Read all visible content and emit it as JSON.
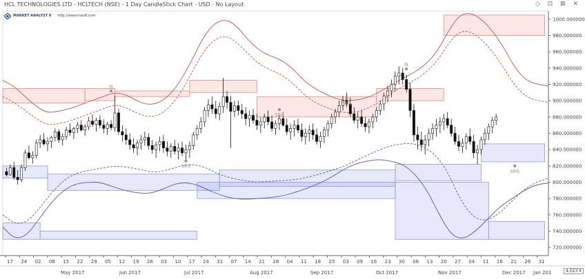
{
  "header": {
    "title": "HCL TECHNOLOGIES LTD - HCLTECH (NSE) - 1 Day CandleStick Chart - USD - No Layout",
    "window_icons": "◇ ⊡ ⊠ ✕"
  },
  "logo": {
    "brand": "MARKET ANALYST 8",
    "url": "http://www.mav8.com"
  },
  "chart_data": {
    "type": "candlestick",
    "y_axis": {
      "ylim": [
        710,
        1010
      ],
      "ticks": [
        720,
        740,
        760,
        780,
        800,
        820,
        840,
        860,
        880,
        900,
        920,
        940,
        960,
        980,
        1000
      ],
      "tick_format": "0.000000",
      "position": "right"
    },
    "x_axis": {
      "day_ticks": [
        "17",
        "24",
        "02",
        "08",
        "15",
        "22",
        "29",
        "05",
        "12",
        "19",
        "26",
        "03",
        "10",
        "17",
        "24",
        "31",
        "07",
        "14",
        "21",
        "28",
        "04",
        "11",
        "18",
        "25",
        "03",
        "09",
        "16",
        "23",
        "30",
        "06",
        "13",
        "20",
        "27",
        "04",
        "11",
        "16",
        "21",
        "26",
        "31"
      ],
      "month_labels": [
        "May 2017",
        "Jun 2017",
        "Jul 2017",
        "Aug 2017",
        "Sep 2017",
        "Oct 2017",
        "Nov 2017",
        "Dec 2017",
        "Jan 201"
      ]
    },
    "price_readout": "4.023 ¥",
    "markers": [
      {
        "label": "N",
        "x_index": 29,
        "y": 912
      },
      {
        "label": "SR5",
        "x_index": 49,
        "y": 826
      },
      {
        "label": "SR4",
        "x_index": 74,
        "y": 889
      },
      {
        "label": "SR3",
        "x_index": 92,
        "y": 903
      },
      {
        "label": "N",
        "x_index": 108,
        "y": 939
      },
      {
        "label": "SR6",
        "x_index": 137,
        "y": 820
      }
    ],
    "bands": [
      {
        "color": "red",
        "segments": [
          [
            0,
            22,
            897,
            915
          ],
          [
            22,
            30,
            900,
            915
          ],
          [
            30,
            50,
            905,
            912
          ],
          [
            50,
            68,
            910,
            925
          ],
          [
            68,
            100,
            880,
            905
          ],
          [
            100,
            118,
            900,
            915
          ],
          [
            118,
            145,
            980,
            1005
          ]
        ]
      },
      {
        "color": "blue",
        "segments": [
          [
            0,
            12,
            805,
            820
          ],
          [
            12,
            58,
            790,
            810
          ],
          [
            58,
            105,
            795,
            815
          ],
          [
            105,
            128,
            802,
            822
          ],
          [
            128,
            145,
            825,
            847
          ]
        ]
      },
      {
        "color": "blue",
        "segments": [
          [
            0,
            10,
            730,
            750
          ],
          [
            10,
            52,
            730,
            740
          ],
          [
            52,
            105,
            780,
            800
          ],
          [
            105,
            130,
            730,
            800
          ],
          [
            130,
            145,
            730,
            752
          ]
        ]
      }
    ],
    "series": [
      {
        "style": "solid-red",
        "values": [
          925,
          918,
          905,
          893,
          885,
          887,
          890,
          895,
          900,
          905,
          910,
          908,
          900,
          895,
          897,
          907,
          925,
          950,
          978,
          995,
          1000,
          992,
          975,
          962,
          955,
          950,
          940,
          925,
          915,
          908,
          902,
          900,
          901,
          905,
          912,
          920,
          928,
          935,
          945,
          960,
          985,
          1005,
          1008,
          1000,
          985,
          965,
          940,
          925,
          920,
          918
        ]
      },
      {
        "style": "dashed-red",
        "values": [
          905,
          898,
          888,
          878,
          870,
          872,
          875,
          880,
          885,
          890,
          895,
          892,
          885,
          880,
          882,
          892,
          910,
          935,
          960,
          975,
          980,
          972,
          958,
          945,
          938,
          932,
          922,
          908,
          898,
          892,
          887,
          885,
          887,
          892,
          900,
          910,
          918,
          925,
          935,
          948,
          970,
          985,
          985,
          975,
          960,
          940,
          918,
          905,
          900,
          898
        ]
      },
      {
        "style": "dashed-blue",
        "values": [
          760,
          748,
          752,
          770,
          790,
          805,
          812,
          815,
          818,
          820,
          818,
          815,
          812,
          815,
          820,
          822,
          818,
          810,
          805,
          802,
          800,
          801,
          802,
          803,
          806,
          810,
          815,
          820,
          828,
          835,
          842,
          846,
          848,
          845,
          835,
          815,
          780,
          758,
          752,
          760,
          775,
          790,
          800,
          805
        ]
      },
      {
        "style": "solid-blue",
        "values": [
          745,
          730,
          735,
          755,
          775,
          790,
          798,
          800,
          800,
          795,
          790,
          787,
          786,
          790,
          797,
          800,
          797,
          790,
          784,
          780,
          779,
          780,
          781,
          783,
          787,
          792,
          798,
          805,
          815,
          822,
          826,
          828,
          826,
          822,
          810,
          790,
          760,
          735,
          730,
          740,
          755,
          770,
          780,
          790,
          797,
          799
        ]
      }
    ],
    "candles": [
      [
        813,
        818,
        807,
        809
      ],
      [
        809,
        822,
        808,
        818
      ],
      [
        818,
        825,
        803,
        806
      ],
      [
        806,
        815,
        797,
        803
      ],
      [
        803,
        822,
        800,
        818
      ],
      [
        818,
        840,
        814,
        836
      ],
      [
        836,
        845,
        828,
        830
      ],
      [
        830,
        838,
        823,
        833
      ],
      [
        833,
        852,
        829,
        848
      ],
      [
        848,
        858,
        842,
        852
      ],
      [
        852,
        860,
        845,
        847
      ],
      [
        847,
        855,
        838,
        850
      ],
      [
        850,
        857,
        842,
        855
      ],
      [
        855,
        866,
        850,
        862
      ],
      [
        862,
        865,
        848,
        852
      ],
      [
        852,
        860,
        845,
        856
      ],
      [
        856,
        868,
        852,
        864
      ],
      [
        864,
        872,
        857,
        861
      ],
      [
        861,
        868,
        853,
        866
      ],
      [
        866,
        874,
        860,
        870
      ],
      [
        870,
        876,
        862,
        864
      ],
      [
        864,
        871,
        857,
        868
      ],
      [
        868,
        880,
        864,
        875
      ],
      [
        875,
        883,
        868,
        871
      ],
      [
        871,
        879,
        862,
        876
      ],
      [
        876,
        882,
        866,
        870
      ],
      [
        870,
        877,
        860,
        866
      ],
      [
        866,
        874,
        858,
        871
      ],
      [
        871,
        876,
        864,
        867
      ],
      [
        867,
        906,
        862,
        885
      ],
      [
        885,
        890,
        858,
        862
      ],
      [
        862,
        870,
        850,
        858
      ],
      [
        858,
        866,
        846,
        852
      ],
      [
        852,
        860,
        840,
        846
      ],
      [
        846,
        854,
        836,
        842
      ],
      [
        842,
        852,
        833,
        848
      ],
      [
        848,
        858,
        840,
        852
      ],
      [
        852,
        862,
        845,
        855
      ],
      [
        855,
        860,
        840,
        845
      ],
      [
        845,
        852,
        835,
        840
      ],
      [
        840,
        850,
        830,
        846
      ],
      [
        846,
        856,
        838,
        850
      ],
      [
        850,
        858,
        836,
        842
      ],
      [
        842,
        850,
        832,
        838
      ],
      [
        838,
        848,
        830,
        844
      ],
      [
        844,
        852,
        834,
        838
      ],
      [
        838,
        848,
        828,
        842
      ],
      [
        842,
        850,
        832,
        836
      ],
      [
        836,
        846,
        826,
        840
      ],
      [
        840,
        850,
        830,
        845
      ],
      [
        845,
        862,
        840,
        858
      ],
      [
        858,
        870,
        852,
        866
      ],
      [
        866,
        880,
        860,
        874
      ],
      [
        874,
        892,
        868,
        888
      ],
      [
        888,
        902,
        880,
        895
      ],
      [
        895,
        905,
        884,
        890
      ],
      [
        890,
        900,
        878,
        884
      ],
      [
        884,
        898,
        876,
        893
      ],
      [
        893,
        928,
        885,
        905
      ],
      [
        905,
        912,
        890,
        898
      ],
      [
        898,
        906,
        842,
        887
      ],
      [
        887,
        900,
        880,
        894
      ],
      [
        894,
        900,
        882,
        888
      ],
      [
        888,
        896,
        878,
        884
      ],
      [
        884,
        892,
        870,
        878
      ],
      [
        878,
        888,
        868,
        882
      ],
      [
        882,
        890,
        872,
        876
      ],
      [
        876,
        884,
        864,
        870
      ],
      [
        870,
        880,
        860,
        874
      ],
      [
        874,
        884,
        866,
        880
      ],
      [
        880,
        888,
        870,
        874
      ],
      [
        874,
        882,
        862,
        866
      ],
      [
        866,
        876,
        858,
        872
      ],
      [
        872,
        882,
        864,
        878
      ],
      [
        878,
        886,
        868,
        870
      ],
      [
        870,
        878,
        858,
        862
      ],
      [
        862,
        872,
        852,
        866
      ],
      [
        866,
        876,
        856,
        870
      ],
      [
        870,
        878,
        860,
        864
      ],
      [
        864,
        872,
        850,
        856
      ],
      [
        856,
        866,
        846,
        860
      ],
      [
        860,
        870,
        850,
        864
      ],
      [
        864,
        872,
        852,
        858
      ],
      [
        858,
        866,
        846,
        850
      ],
      [
        850,
        862,
        842,
        856
      ],
      [
        856,
        868,
        848,
        864
      ],
      [
        864,
        876,
        856,
        872
      ],
      [
        872,
        884,
        866,
        880
      ],
      [
        880,
        890,
        872,
        886
      ],
      [
        886,
        900,
        880,
        894
      ],
      [
        894,
        906,
        888,
        900
      ],
      [
        900,
        910,
        892,
        896
      ],
      [
        896,
        904,
        880,
        884
      ],
      [
        884,
        892,
        872,
        876
      ],
      [
        876,
        886,
        866,
        880
      ],
      [
        880,
        888,
        868,
        872
      ],
      [
        872,
        880,
        862,
        868
      ],
      [
        868,
        878,
        860,
        874
      ],
      [
        874,
        884,
        866,
        880
      ],
      [
        880,
        892,
        874,
        888
      ],
      [
        888,
        900,
        882,
        896
      ],
      [
        896,
        910,
        888,
        906
      ],
      [
        906,
        918,
        898,
        912
      ],
      [
        912,
        926,
        904,
        920
      ],
      [
        920,
        936,
        912,
        930
      ],
      [
        930,
        942,
        920,
        934
      ],
      [
        934,
        940,
        920,
        926
      ],
      [
        926,
        932,
        910,
        914
      ],
      [
        914,
        922,
        880,
        888
      ],
      [
        888,
        896,
        850,
        858
      ],
      [
        858,
        868,
        840,
        852
      ],
      [
        852,
        862,
        838,
        846
      ],
      [
        846,
        858,
        834,
        852
      ],
      [
        852,
        866,
        844,
        860
      ],
      [
        860,
        872,
        852,
        866
      ],
      [
        866,
        878,
        856,
        870
      ],
      [
        870,
        880,
        860,
        874
      ],
      [
        874,
        884,
        864,
        878
      ],
      [
        878,
        886,
        866,
        870
      ],
      [
        870,
        878,
        856,
        860
      ],
      [
        860,
        868,
        846,
        850
      ],
      [
        850,
        858,
        838,
        844
      ],
      [
        844,
        854,
        836,
        848
      ],
      [
        848,
        860,
        840,
        856
      ],
      [
        856,
        866,
        846,
        850
      ],
      [
        850,
        858,
        830,
        836
      ],
      [
        836,
        846,
        822,
        840
      ],
      [
        840,
        856,
        834,
        852
      ],
      [
        852,
        866,
        846,
        860
      ],
      [
        860,
        872,
        852,
        868
      ],
      [
        868,
        880,
        860,
        876
      ],
      [
        876,
        884,
        870,
        880
      ]
    ]
  }
}
